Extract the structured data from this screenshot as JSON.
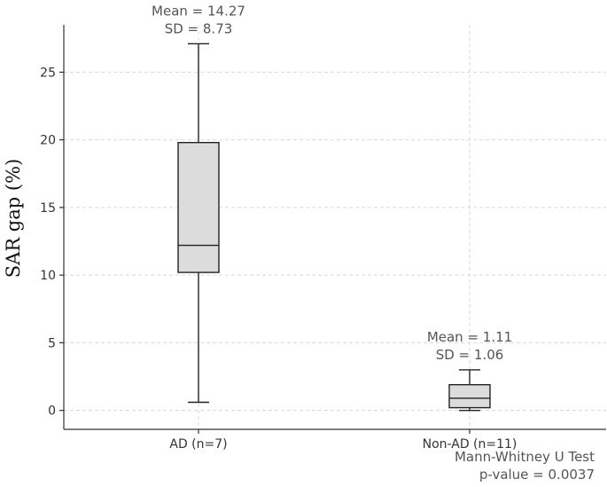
{
  "chart_data": {
    "type": "box",
    "ylabel": "SAR gap (%)",
    "xlabel": "",
    "ylim": [
      -1.4,
      28.5
    ],
    "yticks": [
      0,
      5,
      10,
      15,
      20,
      25
    ],
    "grid": true,
    "categories": [
      "AD (n=7)",
      "Non-AD (n=11)"
    ],
    "boxes": [
      {
        "category": "AD (n=7)",
        "min": 0.6,
        "q1": 10.2,
        "median": 12.2,
        "q3": 19.8,
        "max": 27.1,
        "annotation": [
          "Mean = 14.27",
          "SD = 8.73"
        ]
      },
      {
        "category": "Non-AD (n=11)",
        "min": 0.0,
        "q1": 0.2,
        "median": 0.9,
        "q3": 1.9,
        "max": 3.0,
        "annotation": [
          "Mean = 1.11",
          "SD = 1.06"
        ]
      }
    ],
    "footnote": [
      "Mann-Whitney U Test",
      "p-value = 0.0037"
    ]
  }
}
